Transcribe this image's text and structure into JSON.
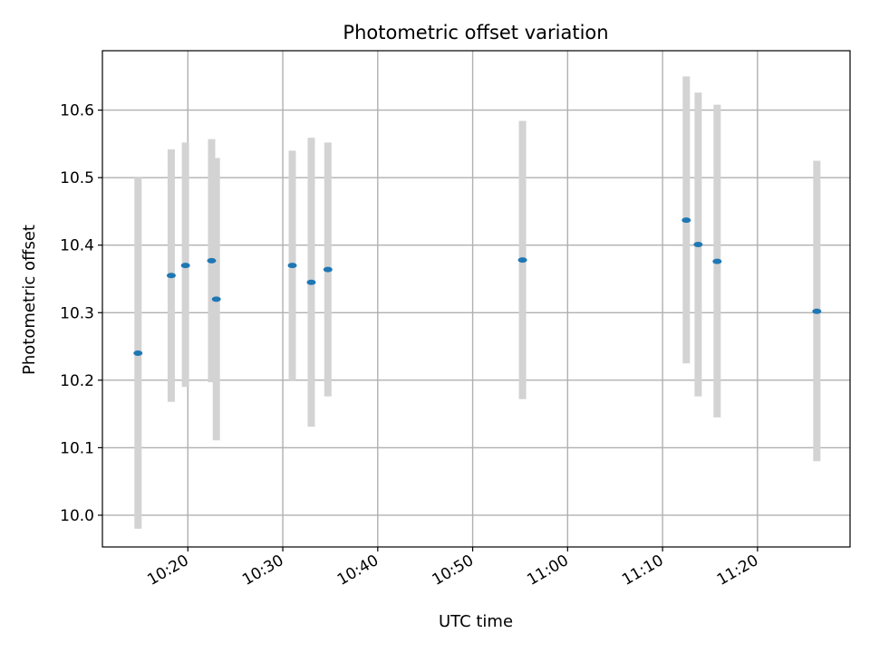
{
  "chart_data": {
    "type": "scatter",
    "title": "Photometric offset variation",
    "xlabel": "UTC time",
    "ylabel": "Photometric offset",
    "x_tick_labels": [
      "10:20",
      "10:30",
      "10:40",
      "10:50",
      "11:00",
      "11:10",
      "11:20"
    ],
    "y_tick_labels": [
      "10.0",
      "10.1",
      "10.2",
      "10.3",
      "10.4",
      "10.5",
      "10.6"
    ],
    "x_tick_values": [
      "10:20",
      "10:30",
      "10:40",
      "10:50",
      "11:00",
      "11:10",
      "11:20"
    ],
    "y_tick_values": [
      10.0,
      10.1,
      10.2,
      10.3,
      10.4,
      10.5,
      10.6
    ],
    "xlim": [
      "10:11:00",
      "11:29:45"
    ],
    "ylim": [
      9.953,
      10.688
    ],
    "grid": true,
    "points": [
      {
        "x": "10:14:45",
        "y": 10.24,
        "ylow": 9.98,
        "yhigh": 10.5
      },
      {
        "x": "10:18:15",
        "y": 10.355,
        "ylow": 10.168,
        "yhigh": 10.542
      },
      {
        "x": "10:19:45",
        "y": 10.37,
        "ylow": 10.19,
        "yhigh": 10.552
      },
      {
        "x": "10:22:30",
        "y": 10.377,
        "ylow": 10.197,
        "yhigh": 10.557
      },
      {
        "x": "10:23:00",
        "y": 10.32,
        "ylow": 10.111,
        "yhigh": 10.529
      },
      {
        "x": "10:31:00",
        "y": 10.37,
        "ylow": 10.2,
        "yhigh": 10.54
      },
      {
        "x": "10:33:00",
        "y": 10.345,
        "ylow": 10.131,
        "yhigh": 10.559
      },
      {
        "x": "10:34:45",
        "y": 10.364,
        "ylow": 10.176,
        "yhigh": 10.552
      },
      {
        "x": "10:55:15",
        "y": 10.378,
        "ylow": 10.172,
        "yhigh": 10.584
      },
      {
        "x": "11:12:30",
        "y": 10.437,
        "ylow": 10.225,
        "yhigh": 10.65
      },
      {
        "x": "11:13:45",
        "y": 10.401,
        "ylow": 10.176,
        "yhigh": 10.626
      },
      {
        "x": "11:15:45",
        "y": 10.376,
        "ylow": 10.145,
        "yhigh": 10.608
      },
      {
        "x": "11:26:15",
        "y": 10.302,
        "ylow": 10.08,
        "yhigh": 10.525
      }
    ],
    "colors": {
      "point": "#1f77b4",
      "errorbar": "#d3d3d3",
      "grid": "#b0b0b0"
    }
  }
}
